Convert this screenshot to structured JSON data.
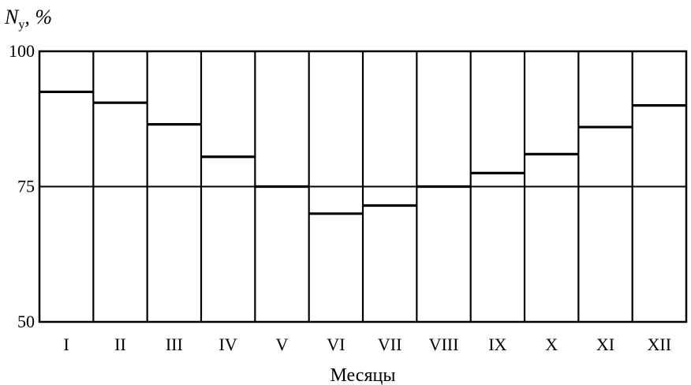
{
  "chart_data": {
    "type": "bar",
    "ylabel": {
      "symbol": "N",
      "subscript": "у",
      "unit": ", %"
    },
    "xlabel": "Месяцы",
    "categories": [
      "I",
      "II",
      "III",
      "IV",
      "V",
      "VI",
      "VII",
      "VIII",
      "IX",
      "X",
      "XI",
      "XII"
    ],
    "values": [
      92.5,
      90.5,
      86.5,
      80.5,
      75,
      70,
      71.5,
      75,
      77.5,
      81,
      86,
      90
    ],
    "ylim": [
      50,
      100
    ],
    "yticks": [
      "50",
      "75",
      "100"
    ],
    "reference_line": 75,
    "grid": false,
    "legend": "none"
  }
}
